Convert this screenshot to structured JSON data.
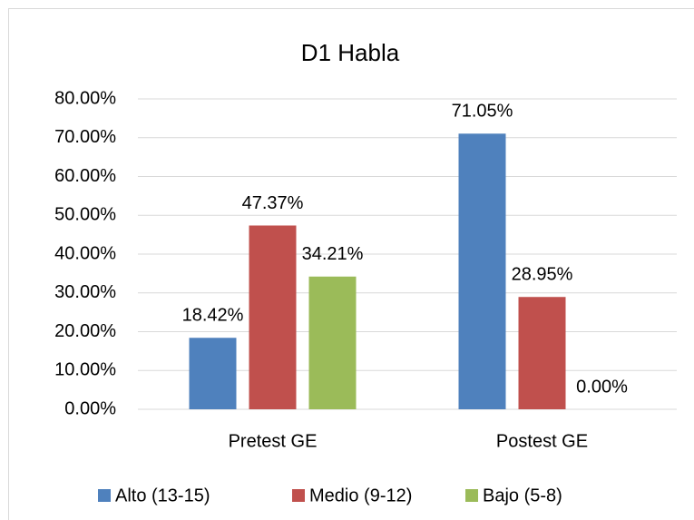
{
  "chart_data": {
    "type": "bar",
    "title": "D1 Habla",
    "categories": [
      "Pretest GE",
      "Postest GE"
    ],
    "series": [
      {
        "name": "Alto (13-15)",
        "color": "#4f81bd",
        "values": [
          18.42,
          71.05
        ],
        "value_labels": [
          "18.42%",
          "71.05%"
        ]
      },
      {
        "name": "Medio (9-12)",
        "color": "#c0504d",
        "values": [
          47.37,
          28.95
        ],
        "value_labels": [
          "47.37%",
          "28.95%"
        ]
      },
      {
        "name": "Bajo (5-8)",
        "color": "#9bbb59",
        "values": [
          34.21,
          0
        ],
        "value_labels": [
          "34.21%",
          "0.00%"
        ]
      }
    ],
    "ylim": [
      0,
      80
    ],
    "yticks": [
      {
        "value": 0,
        "label": "0.00%"
      },
      {
        "value": 10,
        "label": "10.00%"
      },
      {
        "value": 20,
        "label": "20.00%"
      },
      {
        "value": 30,
        "label": "30.00%"
      },
      {
        "value": 40,
        "label": "40.00%"
      },
      {
        "value": 50,
        "label": "50.00%"
      },
      {
        "value": 60,
        "label": "60.00%"
      },
      {
        "value": 70,
        "label": "70.00%"
      },
      {
        "value": 80,
        "label": "80.00%"
      }
    ],
    "grid": true,
    "legend": "bottom"
  }
}
